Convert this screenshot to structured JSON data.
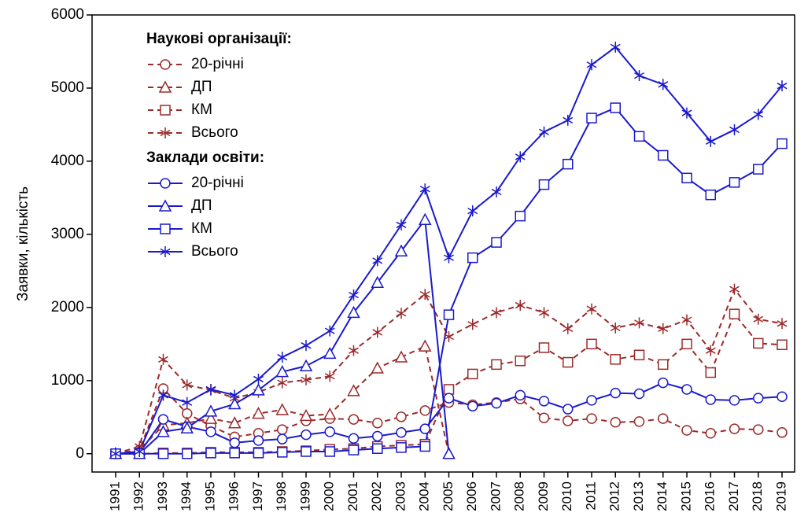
{
  "chart_data": {
    "type": "line",
    "ylabel": "Заявки, кількість",
    "legend_titles": [
      "Наукові організації:",
      "Заклади освіти:"
    ],
    "categories": [
      "1991",
      "1992",
      "1993",
      "1994",
      "1995",
      "1996",
      "1997",
      "1998",
      "1999",
      "2000",
      "2001",
      "2002",
      "2003",
      "2004",
      "2005",
      "2006",
      "2007",
      "2008",
      "2009",
      "2010",
      "2011",
      "2012",
      "2013",
      "2014",
      "2015",
      "2016",
      "2017",
      "2018",
      "2019"
    ],
    "ylim": [
      -250,
      6000
    ],
    "yticks": [
      0,
      1000,
      2000,
      3000,
      4000,
      5000,
      6000
    ],
    "grid": false,
    "legend": "upper left",
    "series": [
      {
        "name": "20-річні",
        "group": 0,
        "marker": "circle",
        "dashed": true,
        "color": "#9b2b2b",
        "values": [
          0,
          50,
          890,
          550,
          380,
          230,
          280,
          330,
          450,
          480,
          470,
          420,
          505,
          590,
          700,
          670,
          700,
          750,
          490,
          450,
          480,
          430,
          440,
          480,
          320,
          280,
          340,
          330,
          290
        ]
      },
      {
        "name": "ДП",
        "group": 0,
        "marker": "triangle",
        "dashed": true,
        "color": "#9b2b2b",
        "values": [
          0,
          50,
          390,
          420,
          480,
          420,
          550,
          600,
          520,
          540,
          860,
          1170,
          1320,
          1470,
          0,
          null,
          null,
          null,
          null,
          null,
          null,
          null,
          null,
          null,
          null,
          null,
          null,
          null,
          null
        ]
      },
      {
        "name": "КМ",
        "group": 0,
        "marker": "square",
        "dashed": true,
        "color": "#9b2b2b",
        "values": [
          0,
          0,
          10,
          10,
          20,
          20,
          20,
          30,
          40,
          60,
          70,
          100,
          115,
          130,
          880,
          1090,
          1220,
          1270,
          1450,
          1250,
          1500,
          1290,
          1350,
          1220,
          1500,
          1110,
          1910,
          1510,
          1490
        ]
      },
      {
        "name": "Всього",
        "group": 0,
        "marker": "star",
        "dashed": true,
        "color": "#9b2b2b",
        "values": [
          0,
          100,
          1290,
          940,
          870,
          760,
          840,
          970,
          1010,
          1060,
          1410,
          1660,
          1920,
          2180,
          1600,
          1770,
          1930,
          2030,
          1930,
          1710,
          1980,
          1720,
          1790,
          1710,
          1830,
          1410,
          2250,
          1840,
          1780
        ]
      },
      {
        "name": "20-річні",
        "group": 1,
        "marker": "circle",
        "dashed": false,
        "color": "#1a1acc",
        "values": [
          0,
          10,
          470,
          370,
          300,
          150,
          180,
          200,
          260,
          300,
          210,
          240,
          290,
          340,
          760,
          650,
          690,
          800,
          720,
          610,
          730,
          830,
          820,
          970,
          880,
          740,
          730,
          760,
          780
        ]
      },
      {
        "name": "ДП",
        "group": 1,
        "marker": "triangle",
        "dashed": false,
        "color": "#1a1acc",
        "values": [
          0,
          0,
          300,
          350,
          580,
          680,
          870,
          1120,
          1200,
          1370,
          1930,
          2340,
          2770,
          3200,
          0,
          null,
          null,
          null,
          null,
          null,
          null,
          null,
          null,
          null,
          null,
          null,
          null,
          null,
          null
        ]
      },
      {
        "name": "КМ",
        "group": 1,
        "marker": "square",
        "dashed": false,
        "color": "#1a1acc",
        "values": [
          0,
          0,
          0,
          0,
          10,
          10,
          10,
          20,
          30,
          30,
          50,
          70,
          85,
          100,
          1900,
          2680,
          2890,
          3250,
          3680,
          3960,
          4590,
          4730,
          4340,
          4080,
          3770,
          3540,
          3710,
          3890,
          4240
        ]
      },
      {
        "name": "Всього",
        "group": 1,
        "marker": "star",
        "dashed": false,
        "color": "#1a1acc",
        "values": [
          0,
          30,
          800,
          700,
          880,
          800,
          1020,
          1320,
          1480,
          1680,
          2170,
          2640,
          3130,
          3620,
          2680,
          3320,
          3580,
          4060,
          4400,
          4560,
          5320,
          5560,
          5170,
          5050,
          4660,
          4270,
          4430,
          4640,
          5030
        ]
      }
    ]
  }
}
